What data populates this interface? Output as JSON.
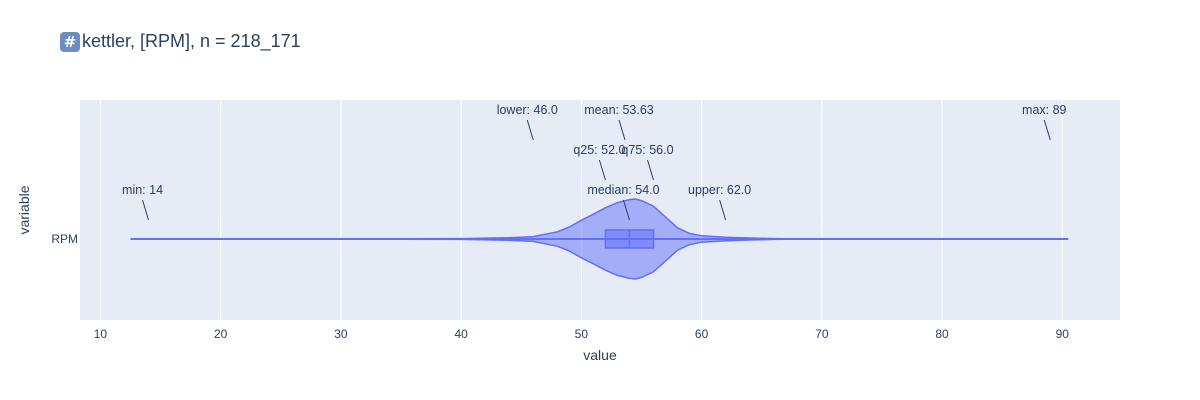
{
  "chart_data": {
    "type": "violin",
    "title_icon": "#",
    "title": "kettler, [RPM], n = 218_171",
    "xlabel": "value",
    "ylabel": "variable",
    "category": "RPM",
    "xlim": [
      8.3,
      94.8
    ],
    "xticks": [
      10,
      20,
      30,
      40,
      50,
      60,
      70,
      80,
      90
    ],
    "grid": true,
    "colors": {
      "fill": "rgba(99,110,250,0.5)",
      "line": "#636efa",
      "plot_bg": "#e5ecf6",
      "text": "#2a3f5f"
    },
    "stats": {
      "min": 14,
      "lower": 46.0,
      "q25": 52.0,
      "median": 54.0,
      "mean": 53.63,
      "q75": 56.0,
      "upper": 62.0,
      "max": 89
    },
    "whisker_range": [
      12.5,
      90.5
    ],
    "density": [
      [
        35,
        0.005
      ],
      [
        40,
        0.01
      ],
      [
        44,
        0.03
      ],
      [
        46,
        0.06
      ],
      [
        48,
        0.18
      ],
      [
        49,
        0.3
      ],
      [
        50,
        0.47
      ],
      [
        51,
        0.62
      ],
      [
        52,
        0.78
      ],
      [
        53,
        0.91
      ],
      [
        54,
        0.985
      ],
      [
        54.5,
        1.0
      ],
      [
        55,
        0.96
      ],
      [
        56,
        0.82
      ],
      [
        57,
        0.55
      ],
      [
        58,
        0.28
      ],
      [
        59,
        0.14
      ],
      [
        60,
        0.08
      ],
      [
        62,
        0.045
      ],
      [
        64,
        0.025
      ],
      [
        66,
        0.01
      ],
      [
        67.5,
        0.004
      ]
    ],
    "annotations": [
      {
        "label": "min: 14",
        "x": 14,
        "row": 1
      },
      {
        "label": "median: 54.0",
        "x": 54.0,
        "row": 1
      },
      {
        "label": "upper: 62.0",
        "x": 62.0,
        "row": 1
      },
      {
        "label": "q25: 52.0",
        "x": 52.0,
        "row": 2
      },
      {
        "label": "q75: 56.0",
        "x": 56.0,
        "row": 2
      },
      {
        "label": "lower: 46.0",
        "x": 46.0,
        "row": 3
      },
      {
        "label": "mean: 53.63",
        "x": 53.63,
        "row": 3
      },
      {
        "label": "max: 89",
        "x": 89,
        "row": 3
      }
    ]
  }
}
